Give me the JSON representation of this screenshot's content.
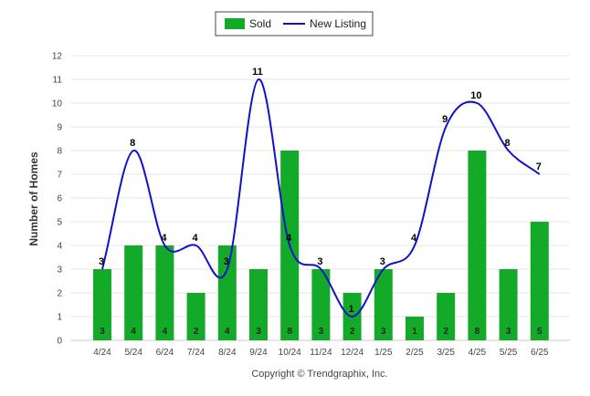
{
  "chart_data": {
    "type": "bar",
    "categories": [
      "4/24",
      "5/24",
      "6/24",
      "7/24",
      "8/24",
      "9/24",
      "10/24",
      "11/24",
      "12/24",
      "1/25",
      "2/25",
      "3/25",
      "4/25",
      "5/25",
      "6/25"
    ],
    "series": [
      {
        "name": "Sold",
        "type": "bar",
        "color": "#13aa29",
        "values": [
          3,
          4,
          4,
          2,
          4,
          3,
          8,
          3,
          2,
          3,
          1,
          2,
          8,
          3,
          5
        ]
      },
      {
        "name": "New Listing",
        "type": "line",
        "color": "#1111cc",
        "values": [
          3,
          8,
          4,
          4,
          3,
          11,
          4,
          3,
          1,
          3,
          4,
          9,
          10,
          8,
          7
        ]
      }
    ],
    "ylabel": "Number of Homes",
    "xlabel": "",
    "ylim": [
      0,
      12
    ],
    "yticks": [
      0,
      1,
      2,
      3,
      4,
      5,
      6,
      7,
      8,
      9,
      10,
      11,
      12
    ],
    "grid": true,
    "legend": "top-center",
    "credit": "Copyright © Trendgraphix, Inc."
  }
}
